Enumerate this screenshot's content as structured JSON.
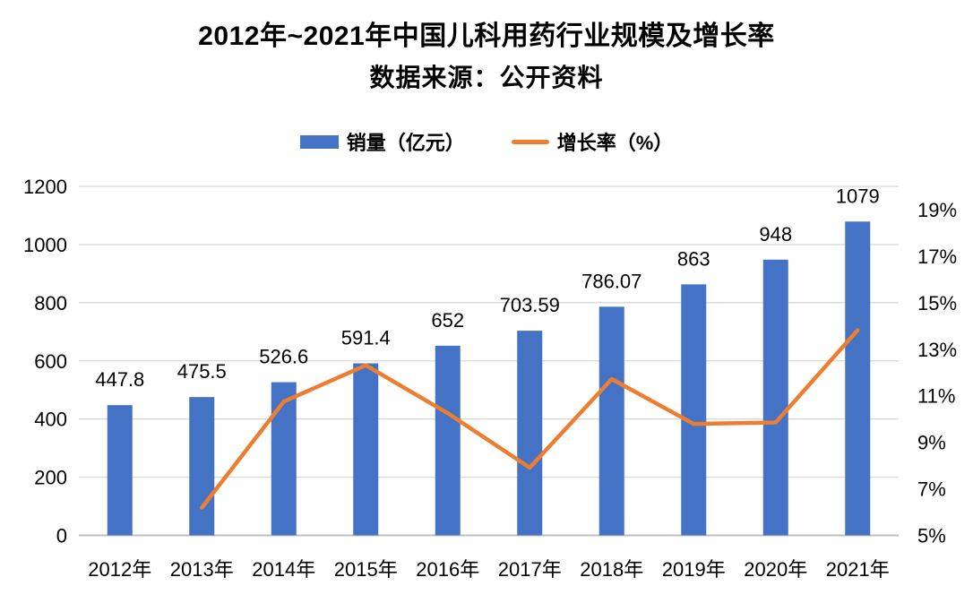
{
  "header": {
    "title": "2012年~2021年中国儿科用药行业规模及增长率",
    "subtitle": "数据来源：公开资料"
  },
  "legend": {
    "items": [
      {
        "label": "销量（亿元）",
        "swatch": "bar-swatch",
        "color": "#4472C4"
      },
      {
        "label": "增长率（%）",
        "swatch": "line-swatch",
        "color": "#ED7D31"
      }
    ]
  },
  "chart_data": {
    "type": "combo",
    "title": "2012年~2021年中国儿科用药行业规模及增长率",
    "subtitle": "数据来源：公开资料",
    "categories": [
      "2012年",
      "2013年",
      "2014年",
      "2015年",
      "2016年",
      "2017年",
      "2018年",
      "2019年",
      "2020年",
      "2021年"
    ],
    "series": [
      {
        "name": "销量（亿元）",
        "type": "bar",
        "axis": "left",
        "color": "#4472C4",
        "values": [
          447.8,
          475.5,
          526.6,
          591.4,
          652,
          703.59,
          786.07,
          863,
          948,
          1079
        ],
        "value_labels": [
          "447.8",
          "475.5",
          "526.6",
          "591.4",
          "652",
          "703.59",
          "786.07",
          "863",
          "948",
          "1079"
        ]
      },
      {
        "name": "增长率（%）",
        "type": "line",
        "axis": "right",
        "color": "#ED7D31",
        "values": [
          null,
          6.19,
          10.75,
          12.31,
          10.25,
          7.91,
          11.72,
          9.79,
          9.85,
          13.82
        ]
      }
    ],
    "left_axis": {
      "min": 0,
      "max": 1200,
      "step": 200,
      "ticks": [
        "0",
        "200",
        "400",
        "600",
        "800",
        "1000",
        "1200"
      ]
    },
    "right_axis": {
      "min": 5,
      "max": 20,
      "label_step": 2,
      "ticks": [
        "5%",
        "7%",
        "9%",
        "11%",
        "13%",
        "15%",
        "17%",
        "19%"
      ]
    },
    "grid": true,
    "legend_position": "top",
    "colors": {
      "grid": "#D9D9D9",
      "axis_line": "#BFBFBF",
      "text": "#000000"
    }
  }
}
